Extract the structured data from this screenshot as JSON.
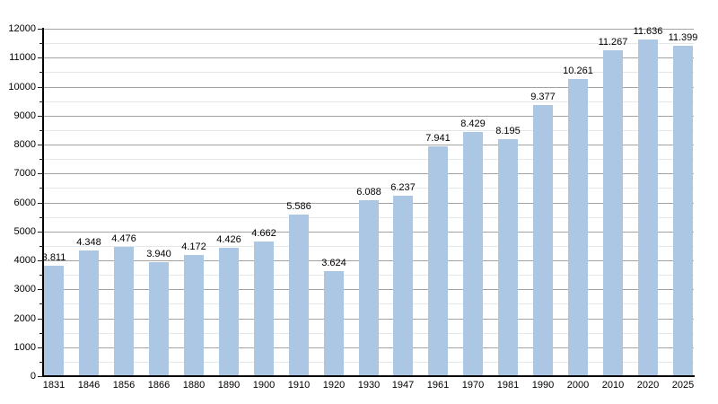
{
  "chart_data": {
    "type": "bar",
    "title": "",
    "xlabel": "",
    "ylabel": "",
    "categories": [
      "1831",
      "1846",
      "1856",
      "1866",
      "1880",
      "1890",
      "1900",
      "1910",
      "1920",
      "1930",
      "1947",
      "1961",
      "1970",
      "1981",
      "1990",
      "2000",
      "2010",
      "2020",
      "2025"
    ],
    "values": [
      3811,
      4348,
      4476,
      3940,
      4172,
      4426,
      4662,
      5586,
      3624,
      6088,
      6237,
      7941,
      8429,
      8195,
      9377,
      10261,
      11267,
      11636,
      11399
    ],
    "value_labels": [
      "3.811",
      "4.348",
      "4.476",
      "3.940",
      "4.172",
      "4.426",
      "4.662",
      "5.586",
      "3.624",
      "6.088",
      "6.237",
      "7.941",
      "8.429",
      "8.195",
      "9.377",
      "10.261",
      "11.267",
      "11.636",
      "11.399"
    ],
    "ylim": [
      0,
      12000
    ],
    "y_major_step": 1000,
    "y_minor_step": 500,
    "y_tick_labels": [
      "0",
      "1000",
      "2000",
      "3000",
      "4000",
      "5000",
      "6000",
      "7000",
      "8000",
      "9000",
      "10000",
      "11000",
      "12000"
    ],
    "grid": "on",
    "legend": "none",
    "colors": {
      "bar_fill": "#abc7e3",
      "major_grid": "#a3a3a3",
      "minor_grid": "#e4e7ea",
      "axis": "#000000",
      "text": "#000000"
    }
  }
}
